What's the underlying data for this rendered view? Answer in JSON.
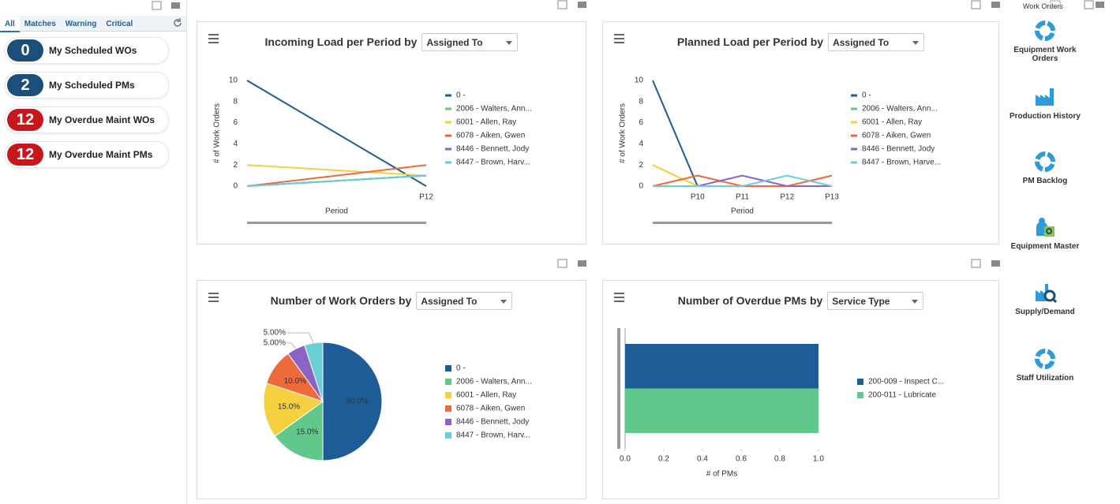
{
  "tabs": [
    "All",
    "Matches",
    "Warning",
    "Critical"
  ],
  "kpis": [
    {
      "count": 0,
      "label": "My Scheduled WOs",
      "color": "#1b4e78"
    },
    {
      "count": 2,
      "label": "My Scheduled PMs",
      "color": "#1b4e78"
    },
    {
      "count": 12,
      "label": "My Overdue Maint WOs",
      "color": "#c8161d"
    },
    {
      "count": 12,
      "label": "My Overdue Maint PMs",
      "color": "#c8161d"
    }
  ],
  "sidebar": {
    "header": "Work Orders",
    "items": [
      "Equipment Work Orders",
      "Production History",
      "PM Backlog",
      "Equipment Master",
      "Supply/Demand",
      "Staff Utilization"
    ]
  },
  "chart_data": [
    {
      "type": "line",
      "title": "Incoming Load per Period by",
      "dropdown": "Assigned To",
      "xlabel": "Period",
      "ylabel": "# of Work Orders",
      "categories": [
        null,
        "P12"
      ],
      "ylim": [
        0,
        10
      ],
      "yticks": [
        0,
        2,
        4,
        6,
        8,
        10
      ],
      "grid": false,
      "series": [
        {
          "name": "0 -",
          "color": "#1d5c96",
          "values": [
            10,
            0
          ]
        },
        {
          "name": "2006 - Walters, Ann...",
          "color": "#5fc88a",
          "values": [
            0,
            1
          ]
        },
        {
          "name": "6001 - Allen, Ray",
          "color": "#f5d03f",
          "values": [
            2,
            1
          ]
        },
        {
          "name": "6078 - Aiken, Gwen",
          "color": "#ef6a3a",
          "values": [
            0,
            2
          ]
        },
        {
          "name": "8446 - Bennett, Jody",
          "color": "#8a63c4",
          "values": [
            0,
            1
          ]
        },
        {
          "name": "8447 - Brown, Harv...",
          "color": "#6acfd5",
          "values": [
            0,
            1
          ]
        }
      ]
    },
    {
      "type": "line",
      "title": "Planned Load per Period by",
      "dropdown": "Assigned To",
      "xlabel": "Period",
      "ylabel": "# of Work Orders",
      "categories": [
        null,
        "P10",
        "P11",
        "P12",
        "P13"
      ],
      "ylim": [
        0,
        10
      ],
      "yticks": [
        0,
        2,
        4,
        6,
        8,
        10
      ],
      "grid": false,
      "series": [
        {
          "name": "0 -",
          "color": "#1d5c96",
          "values": [
            10,
            0,
            0,
            0,
            0
          ]
        },
        {
          "name": "2006 - Walters, Ann...",
          "color": "#5fc88a",
          "values": [
            0,
            0,
            0,
            0,
            0
          ]
        },
        {
          "name": "6001 - Allen, Ray",
          "color": "#f5d03f",
          "values": [
            2,
            0,
            0,
            0,
            0
          ]
        },
        {
          "name": "6078 - Aiken, Gwen",
          "color": "#ef6a3a",
          "values": [
            0,
            1,
            0,
            0,
            1
          ]
        },
        {
          "name": "8446 - Bennett, Jody",
          "color": "#8a63c4",
          "values": [
            0,
            0,
            1,
            0,
            0
          ]
        },
        {
          "name": "8447 - Brown, Harve...",
          "color": "#6acfd5",
          "values": [
            0,
            0,
            0,
            1,
            0
          ]
        }
      ]
    },
    {
      "type": "pie",
      "title": "Number of Work Orders by",
      "dropdown": "Assigned To",
      "categories": [
        "0 -",
        "2006 - Walters, Ann...",
        "6001 - Allen, Ray",
        "6078 - Aiken, Gwen",
        "8446 - Bennett, Jody",
        "8447 - Brown, Harv..."
      ],
      "values": [
        50,
        15,
        15,
        10,
        5,
        5
      ],
      "value_labels": [
        "50.0%",
        "15.0%",
        "15.0%",
        "10.0%",
        "5.00%",
        "5.00%"
      ],
      "colors": [
        "#1d5c96",
        "#5fc88a",
        "#f5d03f",
        "#ef6a3a",
        "#8a63c4",
        "#6acfd5"
      ]
    },
    {
      "type": "hbar",
      "title": "Number of Overdue PMs by",
      "dropdown": "Service Type",
      "xlabel": "# of PMs",
      "categories": [
        null
      ],
      "xlim": [
        0,
        1
      ],
      "xticks": [
        {
          "value": 0,
          "label": "0.0"
        },
        0.2,
        0.4,
        0.6,
        0.8,
        {
          "value": 1,
          "label": "1.0"
        }
      ],
      "grid": false,
      "series": [
        {
          "name": "200-009 - Inspect C...",
          "color": "#1d5c96",
          "values": [
            1
          ]
        },
        {
          "name": "200-011 - Lubricate",
          "color": "#5fc88a",
          "values": [
            1
          ]
        }
      ]
    }
  ]
}
